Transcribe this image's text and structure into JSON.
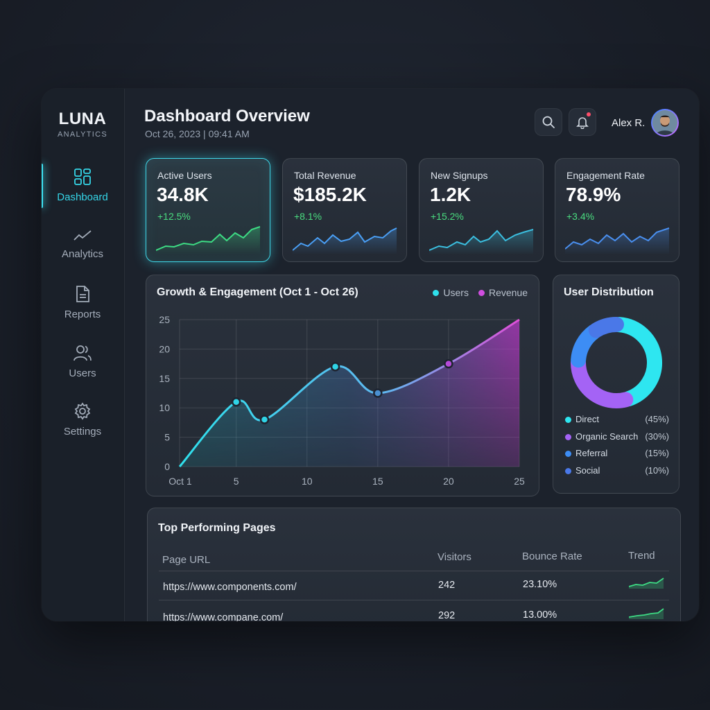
{
  "brand": {
    "name": "LUNA",
    "sub": "ANALYTICS"
  },
  "sidebar": {
    "items": [
      {
        "label": "Dashboard",
        "icon": "grid-icon",
        "active": true
      },
      {
        "label": "Analytics",
        "icon": "trend-line-icon"
      },
      {
        "label": "Reports",
        "icon": "document-icon"
      },
      {
        "label": "Users",
        "icon": "users-icon"
      },
      {
        "label": "Settings",
        "icon": "gear-icon"
      }
    ]
  },
  "header": {
    "title": "Dashboard Overview",
    "subtitle": "Oct 26, 2023 | 09:41 AM",
    "user_name": "Alex R.",
    "notification_dot_color": "#ff4d6a"
  },
  "kpis": [
    {
      "label": "Active Users",
      "value": "34.8K",
      "delta": "+12.5%",
      "spark_color": "#3ddc84",
      "highlighted": true
    },
    {
      "label": "Total Revenue",
      "value": "$185.2K",
      "delta": "+8.1%",
      "spark_color": "#4a9ff5"
    },
    {
      "label": "New Signups",
      "value": "1.2K",
      "delta": "+15.2%",
      "spark_color": "#3bbfe0"
    },
    {
      "label": "Engagement Rate",
      "value": "78.9%",
      "delta": "+3.4%",
      "spark_color": "#4a90f0"
    }
  ],
  "growth": {
    "title": "Growth & Engagement (Oct 1 - Oct 26)",
    "legend": [
      {
        "name": "Users",
        "color": "#2fe0ec"
      },
      {
        "name": "Revenue",
        "color": "#d04ee0"
      }
    ]
  },
  "chart_data": {
    "type": "area",
    "x_tick_labels": [
      "Oct 1",
      "5",
      "10",
      "15",
      "20",
      "25"
    ],
    "x": [
      1,
      5,
      7,
      12,
      15,
      20,
      25
    ],
    "values": [
      0,
      11,
      8,
      17,
      12.5,
      17.5,
      25
    ],
    "markers": [
      5,
      7,
      12,
      15,
      20
    ],
    "xlim": [
      1,
      25
    ],
    "ylim": [
      0,
      25
    ],
    "y_ticks": [
      0,
      5,
      10,
      15,
      20,
      25
    ],
    "grid": true,
    "legend_position": "top-right"
  },
  "distribution": {
    "title": "User Distribution",
    "segments": [
      {
        "label": "Direct",
        "pct": "(45%)",
        "value": 45,
        "color": "#2ee6f0"
      },
      {
        "label": "Organic Search",
        "pct": "(30%)",
        "value": 30,
        "color": "#a463f5"
      },
      {
        "label": "Referral",
        "pct": "(15%)",
        "value": 15,
        "color": "#3d8df5"
      },
      {
        "label": "Social",
        "pct": "(10%)",
        "value": 10,
        "color": "#4a78e8"
      }
    ]
  },
  "table": {
    "title": "Top Performing Pages",
    "columns": [
      "Page URL",
      "Visitors",
      "Bounce Rate",
      "Trend"
    ],
    "rows": [
      {
        "url": "https://www.components.com/",
        "visitors": "242",
        "bounce": "23.10%"
      },
      {
        "url": "https://www.compane.com/",
        "visitors": "292",
        "bounce": "13.00%"
      }
    ]
  }
}
